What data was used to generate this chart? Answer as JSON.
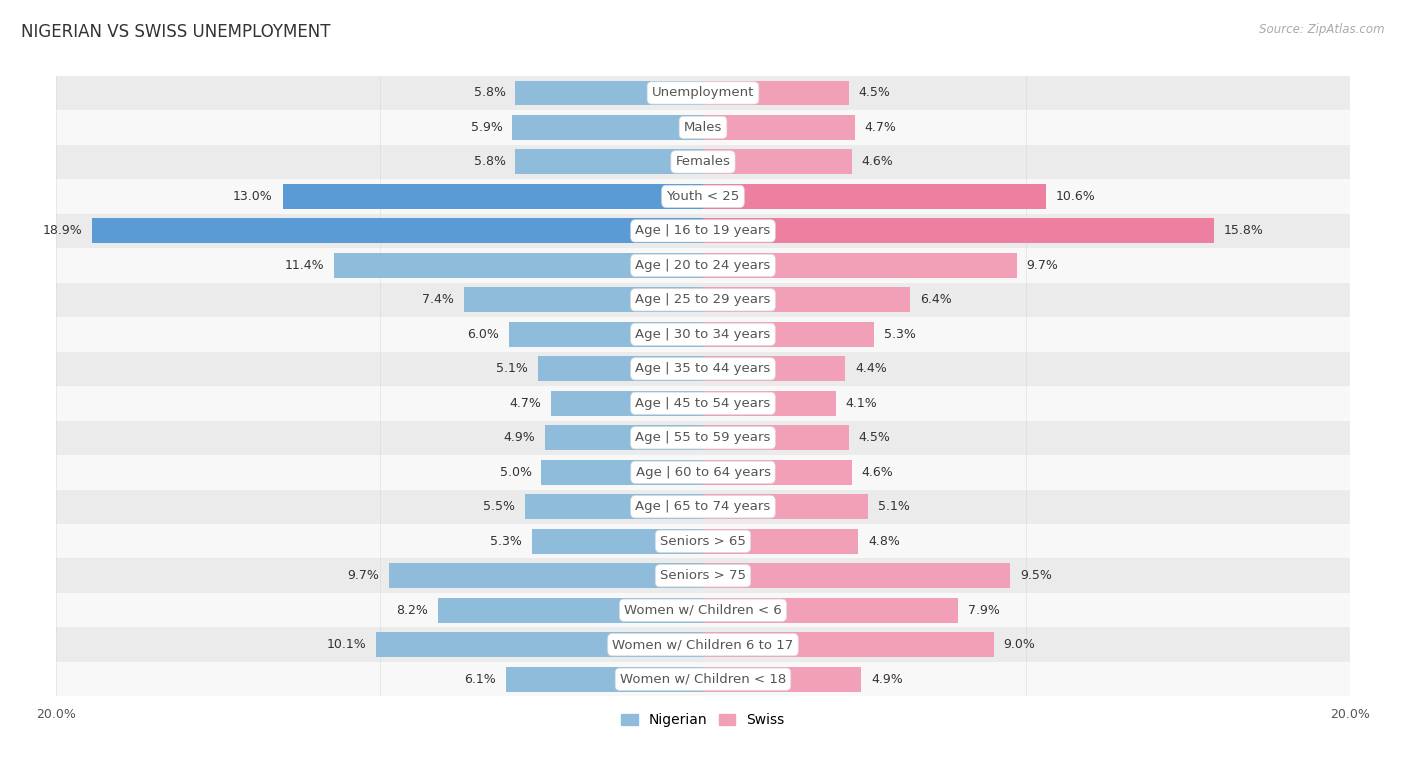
{
  "title": "NIGERIAN VS SWISS UNEMPLOYMENT",
  "source": "Source: ZipAtlas.com",
  "categories": [
    "Unemployment",
    "Males",
    "Females",
    "Youth < 25",
    "Age | 16 to 19 years",
    "Age | 20 to 24 years",
    "Age | 25 to 29 years",
    "Age | 30 to 34 years",
    "Age | 35 to 44 years",
    "Age | 45 to 54 years",
    "Age | 55 to 59 years",
    "Age | 60 to 64 years",
    "Age | 65 to 74 years",
    "Seniors > 65",
    "Seniors > 75",
    "Women w/ Children < 6",
    "Women w/ Children 6 to 17",
    "Women w/ Children < 18"
  ],
  "nigerian": [
    5.8,
    5.9,
    5.8,
    13.0,
    18.9,
    11.4,
    7.4,
    6.0,
    5.1,
    4.7,
    4.9,
    5.0,
    5.5,
    5.3,
    9.7,
    8.2,
    10.1,
    6.1
  ],
  "swiss": [
    4.5,
    4.7,
    4.6,
    10.6,
    15.8,
    9.7,
    6.4,
    5.3,
    4.4,
    4.1,
    4.5,
    4.6,
    5.1,
    4.8,
    9.5,
    7.9,
    9.0,
    4.9
  ],
  "nigerian_color": "#8fbcdb",
  "swiss_color": "#f2a0b8",
  "nigerian_highlight_color": "#5b9bd5",
  "swiss_highlight_color": "#ed7fa0",
  "background_color": "#ffffff",
  "row_even_color": "#ebebeb",
  "row_odd_color": "#f8f8f8",
  "axis_limit": 20.0,
  "bar_height": 0.72,
  "label_fontsize": 9.5,
  "title_fontsize": 12,
  "source_fontsize": 8.5,
  "legend_fontsize": 10,
  "value_fontsize": 9
}
